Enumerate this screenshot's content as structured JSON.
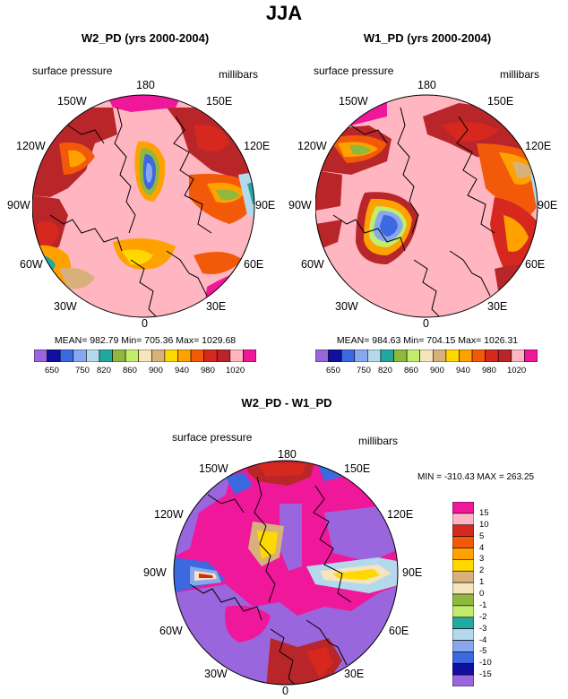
{
  "main_title": "JJA",
  "colors": {
    "purple": "#9966dd",
    "navy": "#1010a0",
    "blue": "#3c68e0",
    "lightblue": "#87a8ef",
    "paleblue": "#b4d9ec",
    "teal": "#22a8a0",
    "green": "#8fb83c",
    "lightgreen": "#c2ec6b",
    "cream": "#f5e4bc",
    "tan": "#d8b07c",
    "yellow": "#ffd800",
    "orange": "#ffa200",
    "darkorange": "#f25a0a",
    "red": "#d6281e",
    "darkred": "#b8262a",
    "pink": "#ffb6c1",
    "magenta": "#f0189a"
  },
  "panel_left": {
    "title": "W2_PD (yrs 2000-2004)",
    "field_label": "surface pressure",
    "units_label": "millibars",
    "stats": "MEAN= 982.79  Min= 705.36  Max= 1029.68",
    "lon_labels": {
      "n180": "180",
      "n150e": "150E",
      "n120e": "120E",
      "n90e": "90E",
      "n60e": "60E",
      "n30e": "30E",
      "n0": "0",
      "n30w": "30W",
      "n60w": "60W",
      "n90w": "90W",
      "n120w": "120W",
      "n150w": "150W"
    }
  },
  "panel_right": {
    "title": "W1_PD (yrs 2000-2004)",
    "field_label": "surface pressure",
    "units_label": "millibars",
    "stats": "MEAN= 984.63  Min= 704.15  Max= 1026.31",
    "lon_labels": {
      "n180": "180",
      "n150e": "150E",
      "n120e": "120E",
      "n90e": "90E",
      "n60e": "60E",
      "n30e": "30E",
      "n0": "0",
      "n30w": "30W",
      "n60w": "60W",
      "n90w": "90W",
      "n120w": "120W",
      "n150w": "150W"
    }
  },
  "panel_diff": {
    "title": "W2_PD - W1_PD",
    "field_label": "surface pressure",
    "units_label": "millibars",
    "stats": "MIN = -310.43  MAX = 263.25",
    "lon_labels": {
      "n180": "180",
      "n150e": "150E",
      "n120e": "120E",
      "n90e": "90E",
      "n60e": "60E",
      "n30e": "30E",
      "n0": "0",
      "n30w": "30W",
      "n60w": "60W",
      "n90w": "90W",
      "n120w": "120W",
      "n150w": "150W"
    }
  },
  "colorbar_h": {
    "colors": [
      "#9966dd",
      "#1010a0",
      "#3c68e0",
      "#87a8ef",
      "#b4d9ec",
      "#22a8a0",
      "#8fb83c",
      "#c2ec6b",
      "#f5e4bc",
      "#d8b07c",
      "#ffd800",
      "#ffa200",
      "#f25a0a",
      "#d6281e",
      "#b8262a",
      "#ffb6c1",
      "#f0189a"
    ],
    "ticks": [
      "650",
      "750",
      "820",
      "860",
      "900",
      "940",
      "980",
      "1020"
    ]
  },
  "colorbar_v": {
    "colors": [
      "#f0189a",
      "#ffb6c1",
      "#d6281e",
      "#f25a0a",
      "#ffa200",
      "#ffd800",
      "#d8b07c",
      "#f5e4bc",
      "#8fb83c",
      "#c2ec6b",
      "#22a8a0",
      "#b4d9ec",
      "#87a8ef",
      "#3c68e0",
      "#1010a0",
      "#9966dd"
    ],
    "ticks": [
      "15",
      "10",
      "5",
      "4",
      "3",
      "2",
      "1",
      "0",
      "-1",
      "-2",
      "-3",
      "-4",
      "-5",
      "-10",
      "-15"
    ]
  }
}
